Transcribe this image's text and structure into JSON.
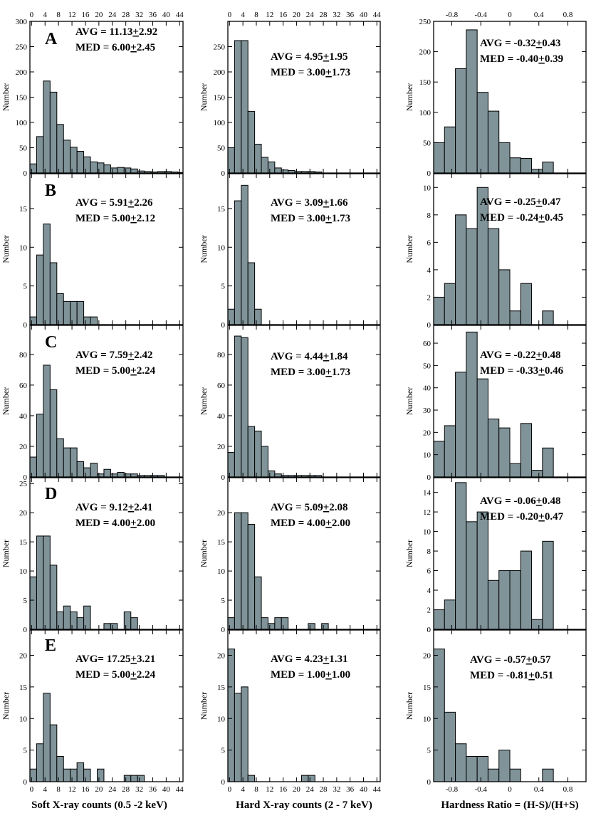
{
  "chart_data": {
    "type": "bar",
    "description_title": "",
    "columns": [
      {
        "key": "soft",
        "xlabel": "Soft X-ray counts (0.5 -2 keV)",
        "ticks": [
          0,
          4,
          8,
          12,
          16,
          20,
          24,
          28,
          32,
          36,
          40,
          44
        ],
        "tick_labels": [
          "0",
          "4",
          "8",
          "12",
          "16",
          "20",
          "24",
          "28",
          "32",
          "36",
          "40",
          "44"
        ],
        "xlim": [
          -0.5,
          45
        ],
        "bin_start": -0.5,
        "bin_width": 2
      },
      {
        "key": "hard",
        "xlabel": "Hard X-ray counts (2 - 7 keV)",
        "ticks": [
          0,
          4,
          8,
          12,
          16,
          20,
          24,
          28,
          32,
          36,
          40,
          44
        ],
        "tick_labels": [
          "0",
          "4",
          "8",
          "12",
          "16",
          "20",
          "24",
          "28",
          "32",
          "36",
          "40",
          "44"
        ],
        "xlim": [
          -0.5,
          45
        ],
        "bin_start": -0.5,
        "bin_width": 2
      },
      {
        "key": "hr",
        "xlabel": "Hardness Ratio = (H-S)/(H+S)",
        "ticks": [
          -0.8,
          -0.4,
          0,
          0.4,
          0.8
        ],
        "tick_labels": [
          "-0.8",
          "-0.4",
          "0",
          "0.4",
          "0.8"
        ],
        "xlim": [
          -1.05,
          1.05
        ],
        "bin_start": -1.05,
        "bin_width": 0.15
      }
    ],
    "ylabel": "Number",
    "rows": [
      {
        "panel": "A",
        "charts": [
          {
            "ylim": [
              0,
              300
            ],
            "yticks": [
              0,
              50,
              100,
              150,
              200,
              250,
              300
            ],
            "ytick_labels": [
              "0",
              "50",
              "100",
              "150",
              "200",
              "250",
              "300"
            ],
            "values": [
              18,
              72,
              182,
              160,
              96,
              65,
              51,
              43,
              32,
              22,
              20,
              16,
              10,
              11,
              10,
              8,
              4,
              3,
              2,
              3,
              3,
              2,
              1
            ],
            "stats": [
              "AVG = 11.13+2.92",
              "MED =  6.00+2.45"
            ]
          },
          {
            "ylim": [
              0,
              300
            ],
            "yticks": [
              0,
              50,
              100,
              150,
              200,
              250
            ],
            "ytick_labels": [
              "0",
              "50",
              "100",
              "150",
              "200",
              "250"
            ],
            "values": [
              50,
              262,
              262,
              122,
              57,
              31,
              22,
              10,
              6,
              5,
              3,
              3,
              3,
              2
            ],
            "stats": [
              "AVG = 4.95+1.95",
              "MED = 3.00+1.73"
            ]
          },
          {
            "ylim": [
              0,
              250
            ],
            "yticks": [
              0,
              50,
              100,
              150,
              200,
              250
            ],
            "ytick_labels": [
              "0",
              "50",
              "100",
              "150",
              "200",
              "250"
            ],
            "values": [
              50,
              76,
              172,
              236,
              133,
              102,
              50,
              25,
              24,
              6,
              18
            ],
            "stats": [
              "AVG = -0.32+0.43",
              "MED = -0.40+0.39"
            ]
          }
        ]
      },
      {
        "panel": "B",
        "charts": [
          {
            "ylim": [
              0,
              19.5
            ],
            "yticks": [
              0,
              5,
              10,
              15
            ],
            "ytick_labels": [
              "0",
              "5",
              "10",
              "15"
            ],
            "values": [
              1,
              9,
              13,
              8,
              4,
              3,
              3,
              3,
              1,
              1
            ],
            "stats": [
              "AVG = 5.91+2.26",
              "MED = 5.00+2.12"
            ]
          },
          {
            "ylim": [
              0,
              19.5
            ],
            "yticks": [
              0,
              5,
              10,
              15
            ],
            "ytick_labels": [
              "0",
              "5",
              "10",
              "15"
            ],
            "values": [
              2,
              16,
              18,
              8,
              2
            ],
            "stats": [
              "AVG = 3.09+1.66",
              "MED = 3.00+1.73"
            ]
          },
          {
            "ylim": [
              0,
              11
            ],
            "yticks": [
              0,
              2,
              4,
              6,
              8,
              10
            ],
            "ytick_labels": [
              "0",
              "2",
              "4",
              "6",
              "8",
              "10"
            ],
            "values": [
              2,
              3,
              8,
              7,
              10,
              7,
              4,
              1,
              3,
              0,
              1
            ],
            "stats": [
              "AVG  = -0.25+0.47",
              "MED = -0.24+0.45"
            ]
          }
        ]
      },
      {
        "panel": "C",
        "charts": [
          {
            "ylim": [
              0,
              99
            ],
            "yticks": [
              0,
              20,
              40,
              60,
              80
            ],
            "ytick_labels": [
              "0",
              "20",
              "40",
              "60",
              "80"
            ],
            "values": [
              13,
              41,
              73,
              57,
              25,
              19,
              19,
              10,
              6,
              9,
              2,
              5,
              2,
              3,
              2,
              2,
              1,
              1,
              1,
              1
            ],
            "stats": [
              "AVG = 7.59+2.42",
              "MED = 5.00+2.24"
            ]
          },
          {
            "ylim": [
              0,
              99
            ],
            "yticks": [
              0,
              20,
              40,
              60,
              80
            ],
            "ytick_labels": [
              "0",
              "20",
              "40",
              "60",
              "80"
            ],
            "values": [
              16,
              92,
              91,
              33,
              30,
              20,
              4,
              2,
              1,
              1,
              1,
              1,
              1,
              1
            ],
            "stats": [
              "AVG = 4.44+1.84",
              "MED = 3.00+1.73"
            ]
          },
          {
            "ylim": [
              0,
              68
            ],
            "yticks": [
              0,
              10,
              20,
              30,
              40,
              50,
              60
            ],
            "ytick_labels": [
              "0",
              "10",
              "20",
              "30",
              "40",
              "50",
              "60"
            ],
            "values": [
              16,
              23,
              47,
              65,
              44,
              26,
              22,
              6,
              24,
              3,
              13
            ],
            "stats": [
              "AVG = -0.22+0.48",
              "MED = -0.33+0.46"
            ]
          }
        ]
      },
      {
        "panel": "D",
        "charts": [
          {
            "ylim": [
              0,
              26
            ],
            "yticks": [
              0,
              5,
              10,
              15,
              20,
              25
            ],
            "ytick_labels": [
              "0",
              "5",
              "10",
              "15",
              "20",
              "25"
            ],
            "values": [
              9,
              16,
              16,
              11,
              3,
              4,
              3,
              2,
              4,
              0,
              0,
              1,
              1,
              0,
              3,
              2
            ],
            "stats": [
              "AVG = 9.12+2.41",
              "MED =  4.00+2.00"
            ]
          },
          {
            "ylim": [
              0,
              26
            ],
            "yticks": [
              0,
              5,
              10,
              15,
              20
            ],
            "ytick_labels": [
              "0",
              "5",
              "10",
              "15",
              "20"
            ],
            "values": [
              2,
              20,
              20,
              18,
              9,
              2,
              1,
              2,
              2,
              0,
              0,
              0,
              1,
              0,
              1
            ],
            "stats": [
              "AVG = 5.09+2.08",
              "MED = 4.00+2.00"
            ]
          },
          {
            "ylim": [
              0,
              15.5
            ],
            "yticks": [
              0,
              2,
              4,
              6,
              8,
              10,
              12,
              14
            ],
            "ytick_labels": [
              "0",
              "2",
              "4",
              "6",
              "8",
              "10",
              "12",
              "14"
            ],
            "values": [
              2,
              3,
              15,
              11,
              12,
              5,
              6,
              6,
              8,
              1,
              9
            ],
            "stats": [
              "AVG = -0.06+0.48",
              "MED = -0.20+0.47"
            ]
          }
        ]
      },
      {
        "panel": "E",
        "charts": [
          {
            "ylim": [
              0,
              24
            ],
            "yticks": [
              0,
              5,
              10,
              15,
              20
            ],
            "ytick_labels": [
              "0",
              "5",
              "10",
              "15",
              "20"
            ],
            "values": [
              2,
              6,
              14,
              9,
              4,
              2,
              2,
              3,
              2,
              0,
              2,
              0,
              0,
              0,
              1,
              1,
              1
            ],
            "stats": [
              "AVG= 17.25+3.21",
              "MED = 5.00+2.24"
            ]
          },
          {
            "ylim": [
              0,
              24
            ],
            "yticks": [
              0,
              5,
              10,
              15,
              20
            ],
            "ytick_labels": [
              "0",
              "5",
              "10",
              "15",
              "20"
            ],
            "values": [
              21,
              14,
              15,
              1,
              0,
              0,
              0,
              0,
              0,
              0,
              0,
              1,
              1
            ],
            "stats": [
              "AVG = 4.23+1.31",
              "MED = 1.00+1.00"
            ]
          },
          {
            "ylim": [
              0,
              24
            ],
            "yticks": [
              0,
              5,
              10,
              15,
              20
            ],
            "ytick_labels": [
              "0",
              "5",
              "10",
              "15",
              "20"
            ],
            "values": [
              21,
              11,
              6,
              4,
              4,
              2,
              5,
              2,
              0,
              0,
              2
            ],
            "stats": [
              "AVG = -0.57+0.57",
              "MED = -0.81+0.51"
            ]
          }
        ]
      }
    ]
  }
}
